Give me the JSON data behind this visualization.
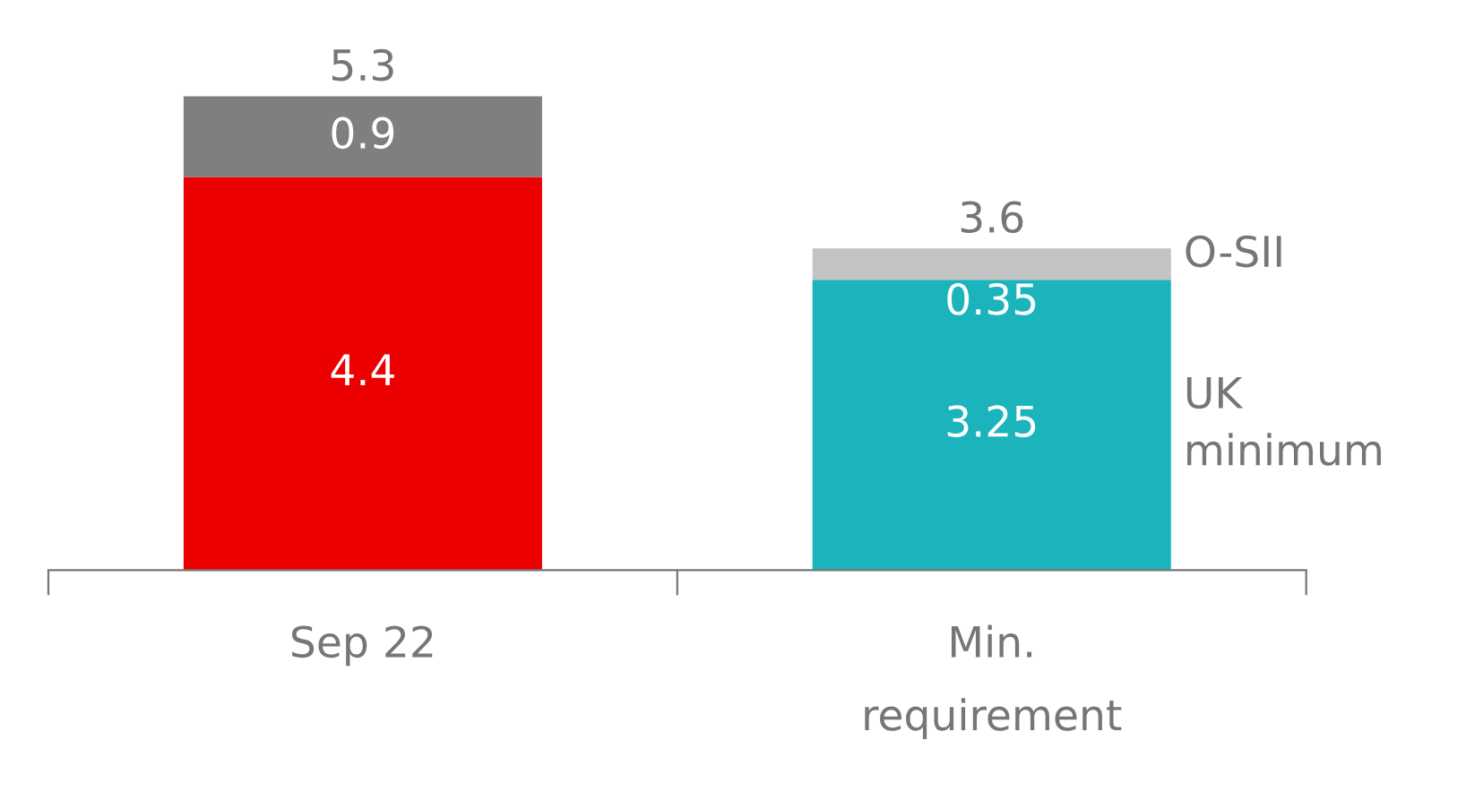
{
  "chart_data": {
    "type": "bar",
    "stacked": true,
    "categories": [
      "Sep 22",
      "Min.\nrequirement"
    ],
    "series": [
      {
        "name": "UK\nminimum",
        "colors": [
          "#ec0000",
          "#1bb3bc"
        ],
        "values": [
          4.4,
          3.25
        ]
      },
      {
        "name": "O-SII",
        "colors": [
          "#7f7f7f",
          "#c3c3c3"
        ],
        "values": [
          0.9,
          0.35
        ]
      }
    ],
    "data_labels": true,
    "totals": [
      "5.3",
      "3.6"
    ],
    "legend": false,
    "grid": false
  }
}
